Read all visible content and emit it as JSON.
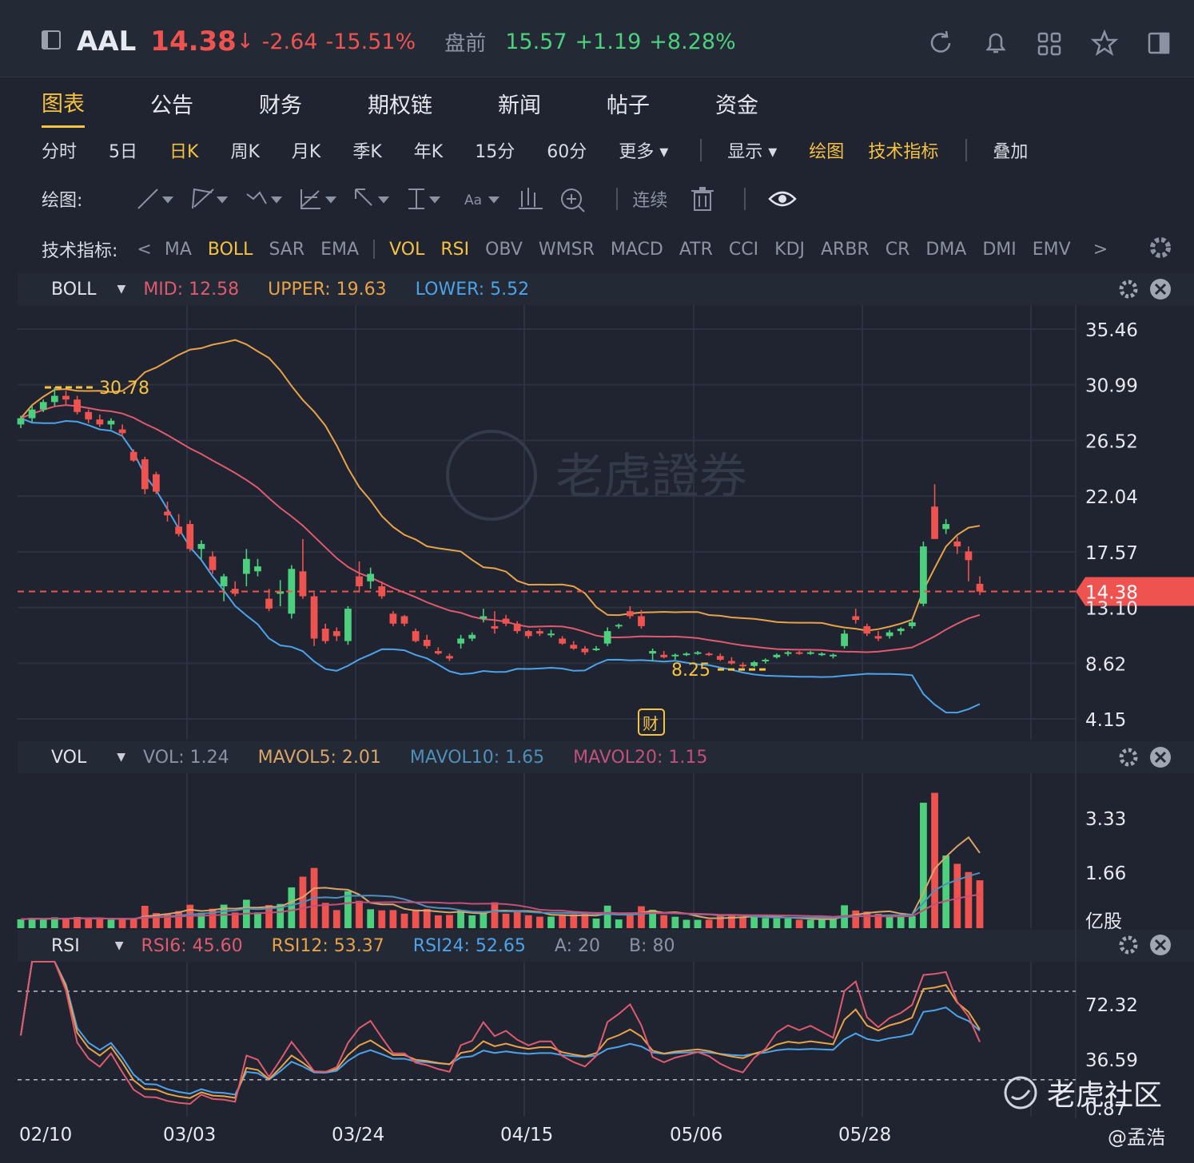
{
  "header": {
    "symbol": "AAL",
    "price": "14.38",
    "change": "-2.64",
    "change_pct": "-15.51%",
    "premarket_label": "盘前",
    "premarket_price": "15.57",
    "premarket_change": "+1.19",
    "premarket_pct": "+8.28%",
    "icons": [
      "refresh-icon",
      "bell-icon",
      "grid-icon",
      "star-icon",
      "panel-icon"
    ]
  },
  "tabs": [
    "图表",
    "公告",
    "财务",
    "期权链",
    "新闻",
    "帖子",
    "资金"
  ],
  "periods": [
    "分时",
    "5日",
    "日K",
    "周K",
    "月K",
    "季K",
    "年K",
    "15分",
    "60分",
    "更多 ▾"
  ],
  "period_right": {
    "display": "显示 ▾",
    "draw": "绘图",
    "indicators": "技术指标",
    "overlay": "叠加"
  },
  "drawbar": {
    "label": "绘图:",
    "continuous": "连续"
  },
  "indicator_bar": {
    "label": "技术指标:",
    "items": [
      "MA",
      "BOLL",
      "SAR",
      "EMA",
      "VOL",
      "RSI",
      "OBV",
      "WMSR",
      "MACD",
      "ATR",
      "CCI",
      "KDJ",
      "ARBR",
      "CR",
      "DMA",
      "DMI",
      "EMV"
    ],
    "active": [
      "BOLL",
      "VOL",
      "RSI"
    ]
  },
  "boll_header": {
    "name": "BOLL",
    "mid": "MID: 12.58",
    "upper": "UPPER: 19.63",
    "lower": "LOWER: 5.52"
  },
  "vol_header": {
    "name": "VOL",
    "vol": "VOL: 1.24",
    "mavol5": "MAVOL5: 2.01",
    "mavol10": "MAVOL10: 1.65",
    "mavol20": "MAVOL20: 1.15"
  },
  "rsi_header": {
    "name": "RSI",
    "rsi6": "RSI6: 45.60",
    "rsi12": "RSI12: 53.37",
    "rsi24": "RSI24: 52.65",
    "a": "A: 20",
    "b": "B: 80"
  },
  "chart_data": {
    "type": "candlestick",
    "x_ticks": [
      "02/10",
      "03/03",
      "03/24",
      "04/15",
      "05/06",
      "05/28"
    ],
    "price_axis": [
      "35.46",
      "30.99",
      "26.52",
      "22.04",
      "17.57",
      "13.10",
      "8.62",
      "4.15"
    ],
    "ylim": [
      4.15,
      35.46
    ],
    "current_price": "14.38",
    "marked_high": "30.78",
    "marked_low": "8.25",
    "event_badge": "财",
    "watermark": "老虎證券",
    "candles": [
      [
        27.8,
        28.5,
        27.5,
        28.3
      ],
      [
        28.3,
        29.3,
        28,
        29
      ],
      [
        29,
        29.8,
        28.8,
        29.6
      ],
      [
        29.6,
        30.78,
        29.3,
        30.1
      ],
      [
        30.1,
        30.5,
        29.4,
        29.8
      ],
      [
        29.8,
        30.1,
        28.6,
        28.8
      ],
      [
        28.8,
        29.0,
        27.9,
        28.2
      ],
      [
        28.2,
        28.6,
        27.6,
        27.8
      ],
      [
        27.8,
        28.3,
        27.4,
        28.1
      ],
      [
        27.4,
        27.8,
        26.8,
        27.1
      ],
      [
        25.6,
        25.8,
        24.8,
        24.9
      ],
      [
        25,
        25.2,
        22.2,
        22.6
      ],
      [
        23.8,
        24.0,
        22.2,
        22.4
      ],
      [
        20.8,
        21.6,
        20.0,
        20.5
      ],
      [
        19.6,
        20.6,
        18.8,
        19.0
      ],
      [
        19.8,
        20.1,
        17.6,
        17.8
      ],
      [
        17.8,
        18.5,
        17.0,
        18.2
      ],
      [
        17.2,
        17.6,
        15.8,
        16.1
      ],
      [
        14.8,
        15.8,
        13.6,
        15.6
      ],
      [
        14.6,
        15.2,
        14.0,
        14.2
      ],
      [
        15.8,
        17.8,
        14.8,
        17.0
      ],
      [
        16.0,
        17.0,
        15.6,
        16.4
      ],
      [
        13.8,
        14.6,
        12.8,
        13.0
      ],
      [
        14.2,
        15.3,
        13.2,
        14.4
      ],
      [
        12.6,
        16.5,
        12.2,
        16.2
      ],
      [
        16.0,
        18.6,
        13.8,
        14.0
      ],
      [
        14.0,
        14.3,
        10.0,
        10.6
      ],
      [
        11.4,
        11.8,
        10.2,
        10.4
      ],
      [
        11.2,
        11.5,
        10.4,
        10.8
      ],
      [
        10.4,
        13.2,
        10.1,
        13.0
      ],
      [
        15.6,
        16.8,
        14.3,
        14.8
      ],
      [
        15.2,
        16.3,
        14.6,
        15.8
      ],
      [
        14.8,
        15.2,
        13.8,
        14.0
      ],
      [
        12.6,
        12.8,
        11.6,
        11.8
      ],
      [
        12.4,
        12.5,
        11.6,
        11.8
      ],
      [
        11.2,
        11.4,
        10.3,
        10.4
      ],
      [
        10.5,
        10.9,
        9.8,
        10.0
      ],
      [
        9.6,
        9.9,
        9.3,
        9.4
      ],
      [
        9.2,
        9.4,
        8.8,
        9.0
      ],
      [
        10.2,
        10.9,
        9.8,
        10.6
      ],
      [
        10.6,
        11.1,
        10.4,
        10.9
      ],
      [
        12.2,
        13.0,
        11.9,
        12.4
      ],
      [
        11.6,
        12.8,
        11.0,
        11.4
      ],
      [
        12.2,
        12.5,
        11.6,
        11.8
      ],
      [
        11.8,
        12.0,
        11.0,
        11.2
      ],
      [
        11.2,
        11.3,
        10.6,
        10.8
      ],
      [
        11.2,
        11.4,
        10.8,
        11.0
      ],
      [
        11.0,
        11.3,
        10.7,
        11.0
      ],
      [
        10.6,
        10.8,
        10.1,
        10.2
      ],
      [
        10.1,
        10.4,
        9.7,
        9.8
      ],
      [
        9.8,
        10.0,
        9.3,
        9.5
      ],
      [
        9.8,
        10.0,
        9.6,
        9.8
      ],
      [
        10.2,
        11.5,
        10.0,
        11.2
      ],
      [
        11.6,
        11.8,
        11.4,
        11.7
      ],
      [
        12.8,
        13.2,
        12.2,
        12.4
      ],
      [
        12.4,
        12.9,
        11.4,
        11.6
      ],
      [
        9.4,
        9.8,
        8.8,
        9.6
      ],
      [
        9.3,
        9.6,
        9.0,
        9.1
      ],
      [
        9.2,
        9.4,
        8.9,
        9.3
      ],
      [
        9.3,
        9.5,
        9.2,
        9.4
      ],
      [
        9.4,
        9.6,
        9.3,
        9.5
      ],
      [
        9.4,
        9.5,
        9.2,
        9.3
      ],
      [
        9.2,
        9.4,
        8.8,
        8.9
      ],
      [
        8.8,
        9.1,
        8.5,
        8.6
      ],
      [
        8.5,
        8.7,
        8.25,
        8.4
      ],
      [
        8.4,
        8.8,
        8.3,
        8.7
      ],
      [
        8.8,
        9.0,
        8.6,
        8.9
      ],
      [
        9.1,
        9.4,
        9.0,
        9.3
      ],
      [
        9.4,
        9.6,
        9.2,
        9.5
      ],
      [
        9.5,
        9.6,
        9.3,
        9.4
      ],
      [
        9.4,
        9.6,
        9.3,
        9.5
      ],
      [
        9.3,
        9.5,
        9.2,
        9.4
      ],
      [
        9.2,
        9.4,
        9.0,
        9.3
      ],
      [
        10.0,
        11.3,
        9.8,
        11.0
      ],
      [
        12.4,
        13.0,
        11.8,
        12.1
      ],
      [
        11.6,
        11.8,
        10.8,
        11.0
      ],
      [
        10.8,
        11.2,
        10.4,
        10.6
      ],
      [
        10.8,
        11.3,
        10.6,
        11.1
      ],
      [
        11.2,
        11.5,
        10.9,
        11.4
      ],
      [
        11.6,
        12.1,
        11.4,
        11.9
      ],
      [
        13.4,
        18.4,
        13.2,
        18.0
      ],
      [
        21.2,
        23.0,
        18.6,
        18.6
      ],
      [
        19.4,
        20.2,
        19.0,
        19.8
      ],
      [
        18.4,
        18.8,
        17.4,
        18.0
      ],
      [
        17.6,
        18.0,
        15.2,
        16.9
      ],
      [
        15.0,
        15.6,
        14.1,
        14.38
      ]
    ],
    "vol_axis": [
      "3.33",
      "1.66",
      "亿股"
    ],
    "vol_max": 4.5,
    "rsi_axis": [
      "72.32",
      "36.59",
      "0.87"
    ],
    "rsi_bands": [
      20,
      80
    ]
  },
  "footer": {
    "watermark": "老虎社区",
    "author": "@孟浩"
  }
}
